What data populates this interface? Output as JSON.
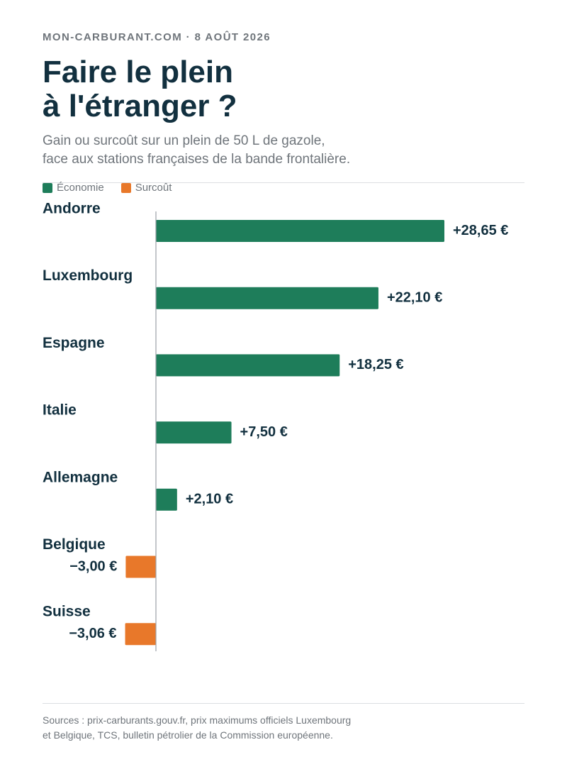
{
  "header": {
    "kicker": "MON-CARBURANT.COM · 8 AOÛT 2026",
    "title_line1": "Faire le plein",
    "title_line2": "à l'étranger ?",
    "subtitle_line1": "Gain ou surcoût sur un plein de 50 L de gazole,",
    "subtitle_line2": "face aux stations françaises de la bande frontalière."
  },
  "legend": [
    {
      "label": "Économie",
      "color": "#1e7d5a"
    },
    {
      "label": "Surcoût",
      "color": "#e8782a"
    }
  ],
  "chart_data": {
    "type": "bar",
    "orientation": "horizontal",
    "categories": [
      "Andorre",
      "Luxembourg",
      "Espagne",
      "Italie",
      "Allemagne",
      "Belgique",
      "Suisse"
    ],
    "values": [
      28.65,
      22.1,
      18.25,
      7.5,
      2.1,
      -3.0,
      -3.06
    ],
    "value_labels": [
      "+28,65 €",
      "+22,10 €",
      "+18,25 €",
      "+7,50 €",
      "+2,10 €",
      "−3,00 €",
      "−3,06 €"
    ],
    "colors": {
      "positive": "#1e7d5a",
      "negative": "#e8782a"
    },
    "xlim": [
      -3.1,
      28.65
    ],
    "grid": false,
    "legend_position": "top-left"
  },
  "footer": {
    "sources_line1": "Sources : prix-carburants.gouv.fr, prix maximums officiels Luxembourg",
    "sources_line2": "et Belgique, TCS, bulletin pétrolier de la Commission européenne."
  }
}
